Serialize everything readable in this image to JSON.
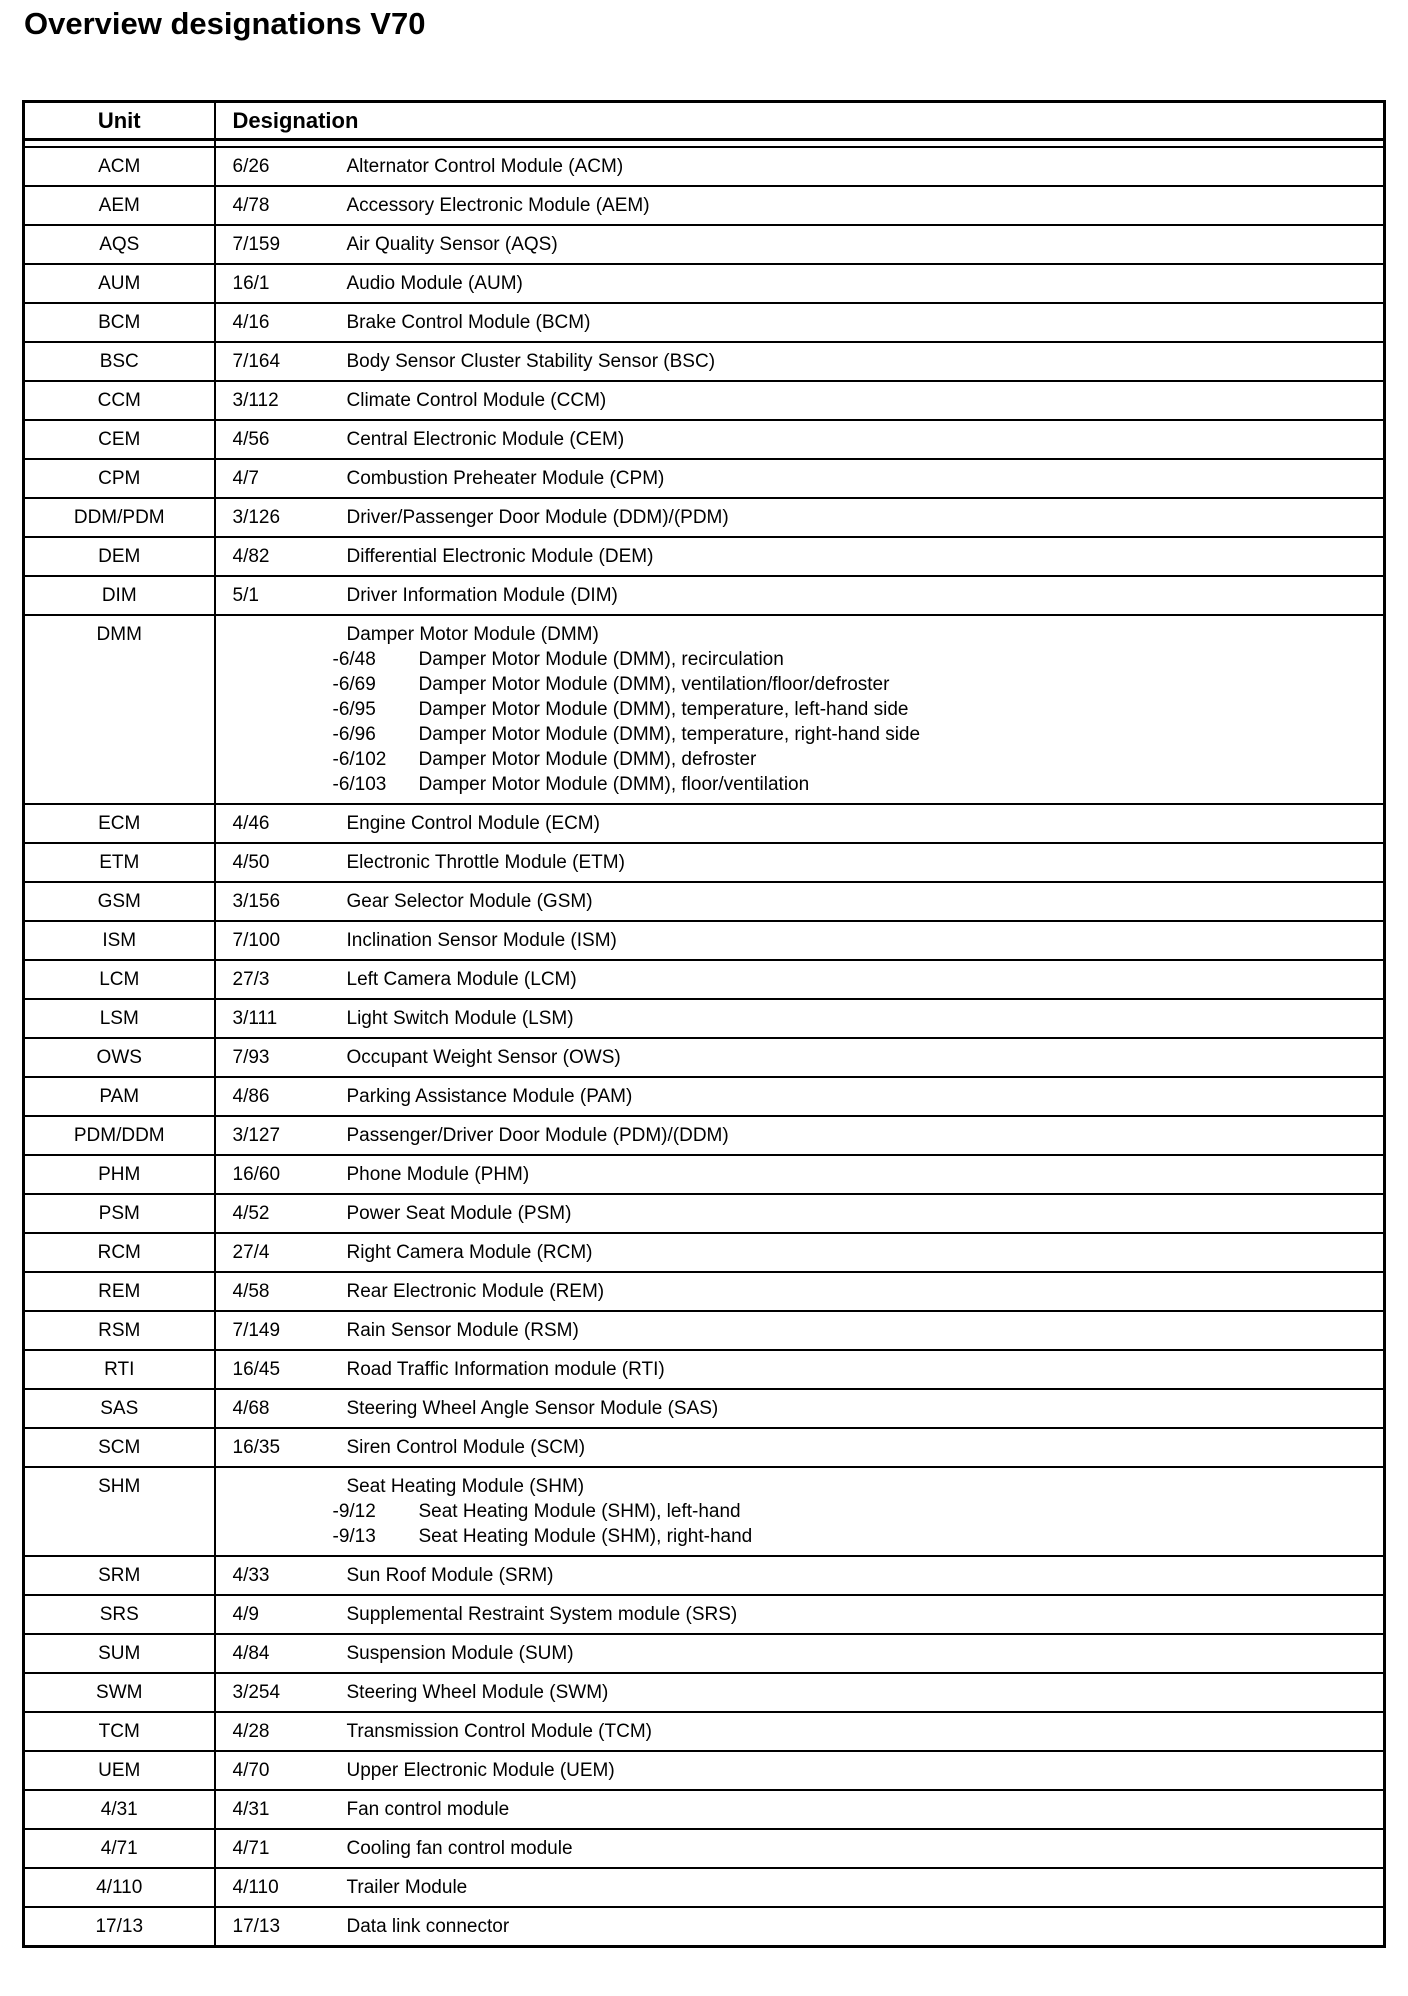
{
  "page": {
    "title": "Overview designations V70"
  },
  "table": {
    "headers": {
      "unit": "Unit",
      "designation": "Designation"
    },
    "rows": [
      {
        "unit": "ACM",
        "code": "6/26",
        "description": "Alternator Control Module (ACM)"
      },
      {
        "unit": "AEM",
        "code": "4/78",
        "description": "Accessory Electronic Module (AEM)"
      },
      {
        "unit": "AQS",
        "code": "7/159",
        "description": "Air Quality Sensor (AQS)"
      },
      {
        "unit": "AUM",
        "code": "16/1",
        "description": "Audio Module (AUM)"
      },
      {
        "unit": "BCM",
        "code": "4/16",
        "description": "Brake Control Module (BCM)"
      },
      {
        "unit": "BSC",
        "code": "7/164",
        "description": "Body Sensor Cluster Stability Sensor (BSC)"
      },
      {
        "unit": "CCM",
        "code": "3/112",
        "description": "Climate Control Module (CCM)"
      },
      {
        "unit": "CEM",
        "code": "4/56",
        "description": "Central Electronic Module (CEM)"
      },
      {
        "unit": "CPM",
        "code": "4/7",
        "description": "Combustion Preheater Module (CPM)"
      },
      {
        "unit": "DDM/PDM",
        "code": "3/126",
        "description": "Driver/Passenger Door Module (DDM)/(PDM)"
      },
      {
        "unit": "DEM",
        "code": "4/82",
        "description": "Differential Electronic Module (DEM)"
      },
      {
        "unit": "DIM",
        "code": "5/1",
        "description": "Driver Information Module (DIM)"
      },
      {
        "unit": "DMM",
        "code": "",
        "description": "Damper Motor Module (DMM)",
        "sub_items": [
          {
            "code": "-6/48",
            "description": "Damper Motor Module (DMM), recirculation"
          },
          {
            "code": "-6/69",
            "description": "Damper Motor Module (DMM), ventilation/floor/defroster"
          },
          {
            "code": "-6/95",
            "description": "Damper Motor Module (DMM), temperature, left-hand side"
          },
          {
            "code": "-6/96",
            "description": "Damper Motor Module (DMM), temperature, right-hand side"
          },
          {
            "code": "-6/102",
            "description": "Damper Motor Module (DMM), defroster"
          },
          {
            "code": "-6/103",
            "description": "Damper Motor Module (DMM), floor/ventilation"
          }
        ]
      },
      {
        "unit": "ECM",
        "code": "4/46",
        "description": "Engine Control Module (ECM)"
      },
      {
        "unit": "ETM",
        "code": "4/50",
        "description": "Electronic Throttle Module (ETM)"
      },
      {
        "unit": "GSM",
        "code": "3/156",
        "description": "Gear Selector Module (GSM)"
      },
      {
        "unit": "ISM",
        "code": "7/100",
        "description": "Inclination Sensor Module (ISM)"
      },
      {
        "unit": "LCM",
        "code": "27/3",
        "description": "Left Camera Module (LCM)"
      },
      {
        "unit": "LSM",
        "code": "3/111",
        "description": "Light Switch Module (LSM)"
      },
      {
        "unit": "OWS",
        "code": "7/93",
        "description": "Occupant Weight Sensor (OWS)"
      },
      {
        "unit": "PAM",
        "code": "4/86",
        "description": "Parking Assistance Module (PAM)"
      },
      {
        "unit": "PDM/DDM",
        "code": "3/127",
        "description": "Passenger/Driver Door Module (PDM)/(DDM)"
      },
      {
        "unit": "PHM",
        "code": "16/60",
        "description": "Phone Module (PHM)"
      },
      {
        "unit": "PSM",
        "code": "4/52",
        "description": "Power Seat Module (PSM)"
      },
      {
        "unit": "RCM",
        "code": "27/4",
        "description": "Right Camera Module (RCM)"
      },
      {
        "unit": "REM",
        "code": "4/58",
        "description": "Rear Electronic Module (REM)"
      },
      {
        "unit": "RSM",
        "code": "7/149",
        "description": "Rain Sensor Module (RSM)"
      },
      {
        "unit": "RTI",
        "code": "16/45",
        "description": "Road Traffic Information module (RTI)"
      },
      {
        "unit": "SAS",
        "code": "4/68",
        "description": "Steering Wheel Angle Sensor Module (SAS)"
      },
      {
        "unit": "SCM",
        "code": "16/35",
        "description": "Siren Control Module (SCM)"
      },
      {
        "unit": "SHM",
        "code": "",
        "description": "Seat Heating Module (SHM)",
        "sub_items": [
          {
            "code": "-9/12",
            "description": "Seat Heating Module (SHM), left-hand"
          },
          {
            "code": "-9/13",
            "description": "Seat Heating Module (SHM), right-hand"
          }
        ]
      },
      {
        "unit": "SRM",
        "code": "4/33",
        "description": "Sun Roof Module (SRM)"
      },
      {
        "unit": "SRS",
        "code": "4/9",
        "description": "Supplemental Restraint System module (SRS)"
      },
      {
        "unit": "SUM",
        "code": "4/84",
        "description": "Suspension Module (SUM)"
      },
      {
        "unit": "SWM",
        "code": "3/254",
        "description": "Steering Wheel Module (SWM)"
      },
      {
        "unit": "TCM",
        "code": "4/28",
        "description": "Transmission Control Module (TCM)"
      },
      {
        "unit": "UEM",
        "code": "4/70",
        "description": "Upper Electronic Module (UEM)"
      },
      {
        "unit": "4/31",
        "code": "4/31",
        "description": "Fan control module"
      },
      {
        "unit": "4/71",
        "code": "4/71",
        "description": "Cooling fan control module"
      },
      {
        "unit": "4/110",
        "code": "4/110",
        "description": "Trailer Module"
      },
      {
        "unit": "17/13",
        "code": "17/13",
        "description": "Data link connector"
      }
    ]
  }
}
